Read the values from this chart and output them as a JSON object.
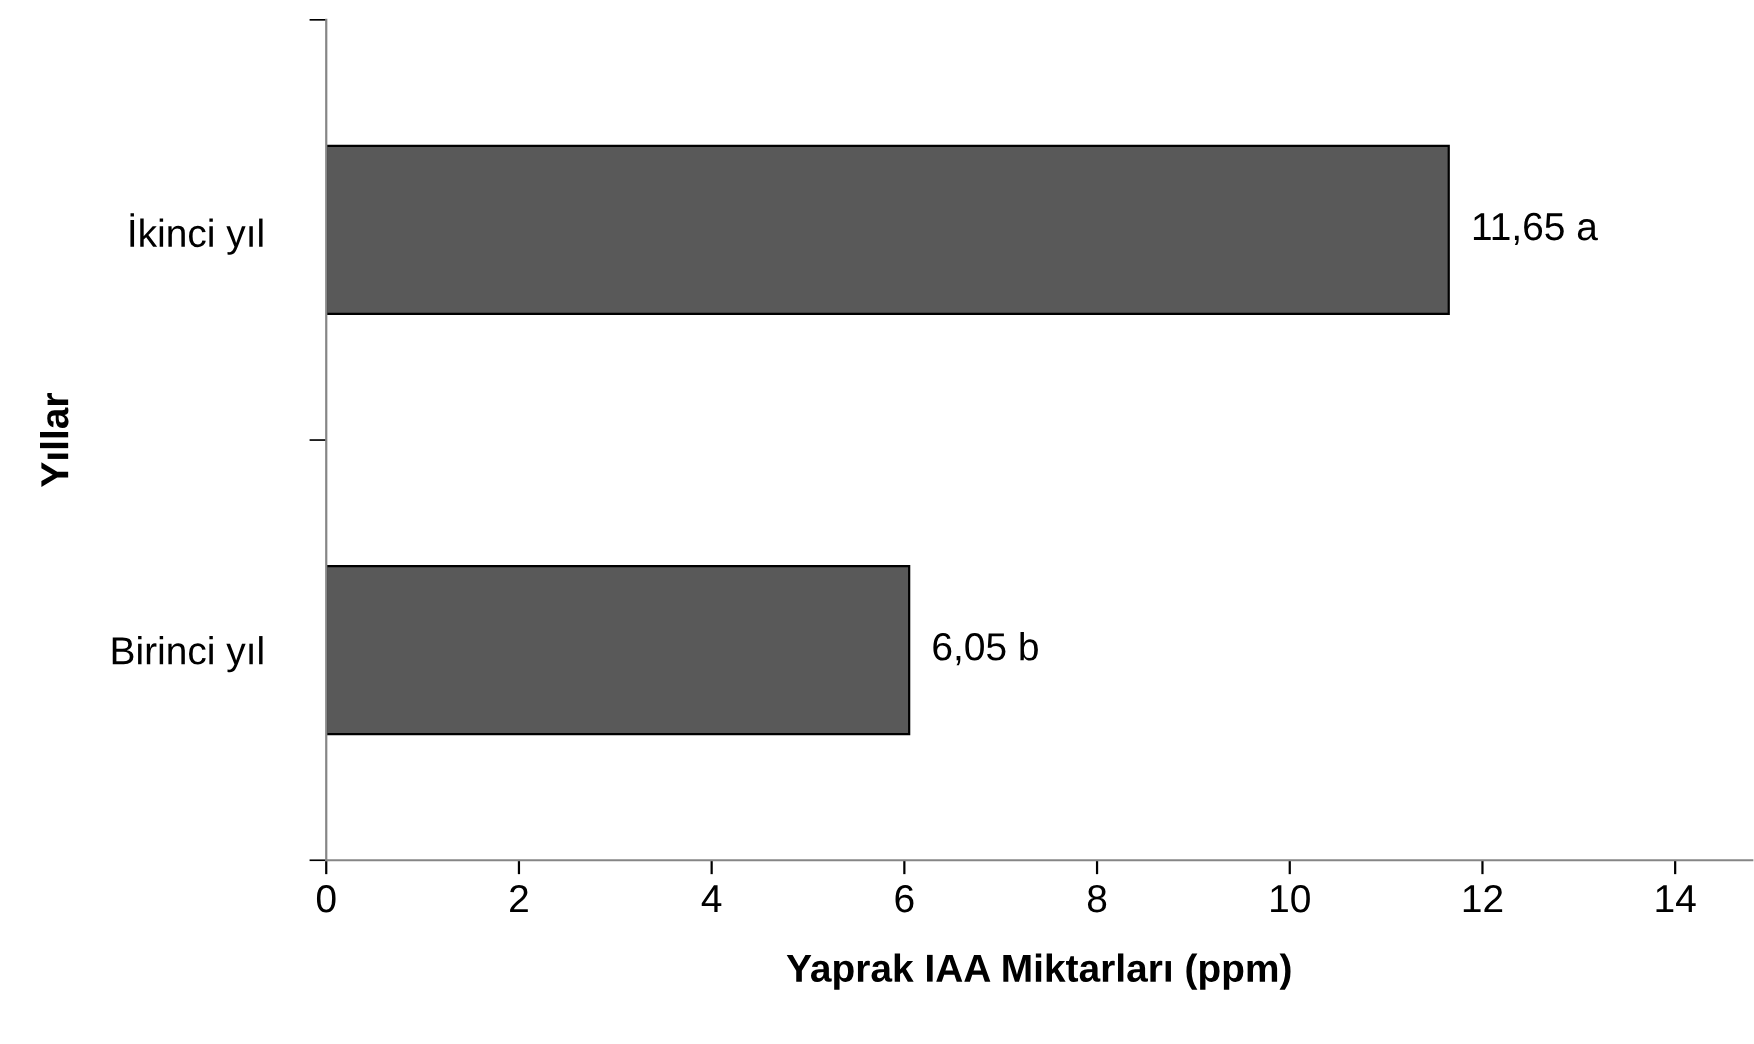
{
  "chart_data": {
    "type": "bar",
    "orientation": "horizontal",
    "xlabel": "Yaprak IAA Miktarları (ppm)",
    "ylabel": "Yıllar",
    "categories": [
      "İkinci yıl",
      "Birinci yıl"
    ],
    "values": [
      11.65,
      6.05
    ],
    "color": "#595959",
    "value_labels": [
      "11,65 a",
      "6,05 b"
    ],
    "xlim": [
      0,
      14.8
    ],
    "xticks": [
      0,
      2,
      4,
      6,
      8,
      10,
      12,
      14
    ],
    "grid": false,
    "legend": false
  }
}
